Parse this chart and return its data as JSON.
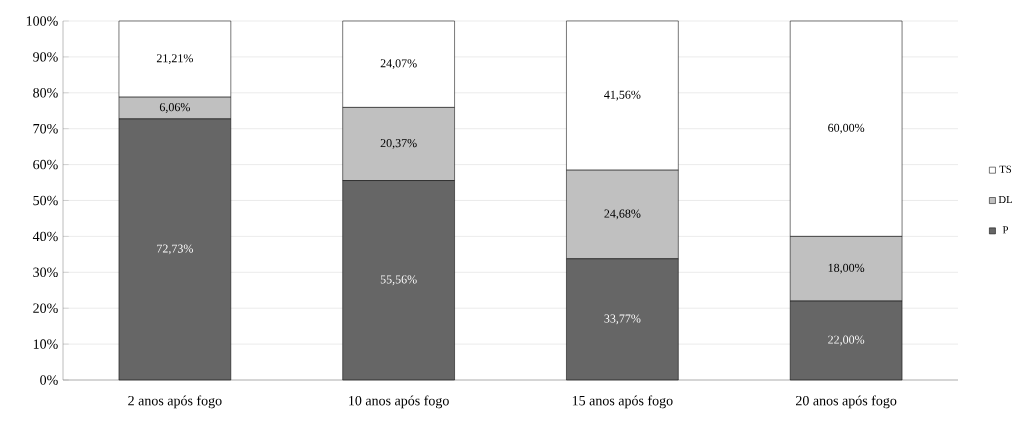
{
  "chart_data": {
    "type": "bar",
    "stacked": true,
    "categories": [
      "2 anos após fogo",
      "10 anos após fogo",
      "15 anos após fogo",
      "20 anos após fogo"
    ],
    "series": [
      {
        "name": "P",
        "color": "#666666",
        "values": [
          72.73,
          55.56,
          33.77,
          22.0
        ],
        "value_labels": [
          "72,73%",
          "55,56%",
          "33,77%",
          "22,00%"
        ]
      },
      {
        "name": "DL",
        "color": "#c0c0c0",
        "values": [
          6.06,
          20.37,
          24.68,
          18.0
        ],
        "value_labels": [
          "6,06%",
          "20,37%",
          "24,68%",
          "18,00%"
        ]
      },
      {
        "name": "TS",
        "color": "#ffffff",
        "values": [
          21.21,
          24.07,
          41.56,
          60.0
        ],
        "value_labels": [
          "21,21%",
          "24,07%",
          "41,56%",
          "60,00%"
        ]
      }
    ],
    "ylim": [
      0,
      100
    ],
    "yticks": [
      {
        "value": 0,
        "label": "0%"
      },
      {
        "value": 10,
        "label": "10%"
      },
      {
        "value": 20,
        "label": "20%"
      },
      {
        "value": 30,
        "label": "30%"
      },
      {
        "value": 40,
        "label": "40%"
      },
      {
        "value": 50,
        "label": "50%"
      },
      {
        "value": 60,
        "label": "60%"
      },
      {
        "value": 70,
        "label": "70%"
      },
      {
        "value": 80,
        "label": "80%"
      },
      {
        "value": 90,
        "label": "90%"
      },
      {
        "value": 100,
        "label": "100%"
      }
    ],
    "grid": "y",
    "legend": "right"
  }
}
